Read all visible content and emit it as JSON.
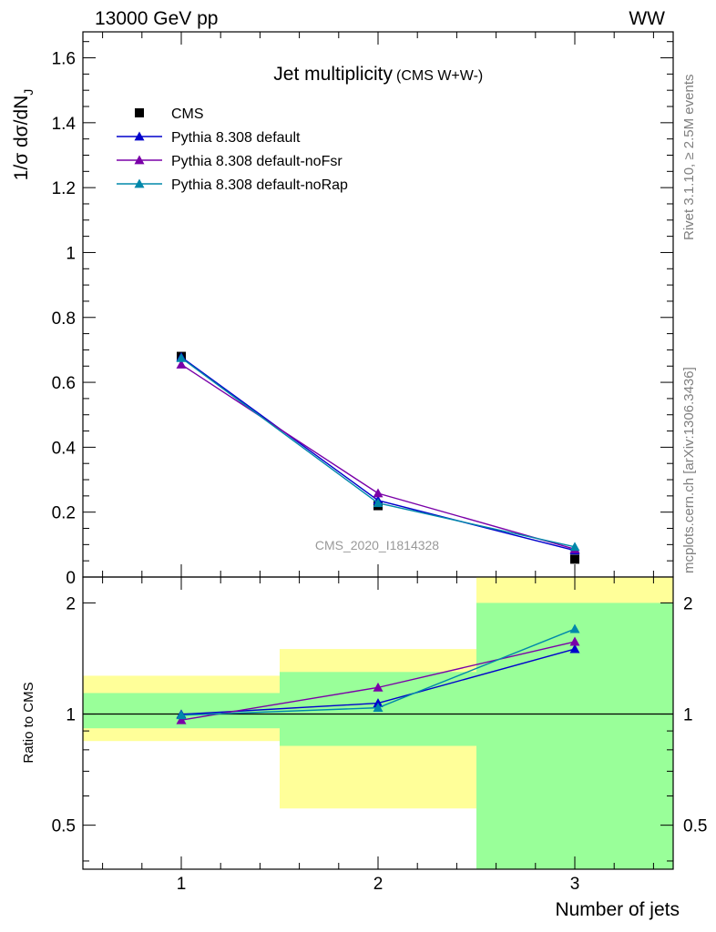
{
  "header": {
    "left": "13000 GeV pp",
    "right": "WW"
  },
  "side_labels": {
    "rivet": "Rivet 3.1.10, ≥ 2.5M events",
    "mcplots": "mcplots.cern.ch [arXiv:1306.3436]"
  },
  "watermark": "CMS_2020_I1814328",
  "chart_data": [
    {
      "type": "line",
      "title": "Jet multiplicity",
      "subtitle": "(CMS W+W-)",
      "ylabel_main": "1/σ dσ/dN",
      "ylabel_sub": "J",
      "ylim": [
        0,
        1.68
      ],
      "yticks": [
        "0",
        "0.2",
        "0.4",
        "0.6",
        "0.8",
        "1",
        "1.2",
        "1.4",
        "1.6"
      ],
      "ytick_values": [
        0,
        0.2,
        0.4,
        0.6,
        0.8,
        1.0,
        1.2,
        1.4,
        1.6
      ],
      "xlim": [
        0.5,
        3.5
      ],
      "x": [
        1,
        2,
        3
      ],
      "legend_position": "top-left",
      "series": [
        {
          "name": "CMS",
          "marker": "square",
          "color": "#000000",
          "values": [
            0.68,
            0.22,
            0.055
          ]
        },
        {
          "name": "Pythia 8.308 default",
          "marker": "triangle",
          "color": "#0000cc",
          "values": [
            0.678,
            0.236,
            0.082
          ]
        },
        {
          "name": "Pythia 8.308 default-noFsr",
          "marker": "triangle",
          "color": "#7a00a8",
          "values": [
            0.655,
            0.258,
            0.086
          ]
        },
        {
          "name": "Pythia 8.308 default-noRap",
          "marker": "triangle",
          "color": "#0088aa",
          "values": [
            0.675,
            0.228,
            0.093
          ]
        }
      ]
    },
    {
      "type": "line",
      "ylabel": "Ratio to CMS",
      "xlabel": "Number of jets",
      "yscale": "log",
      "ylim": [
        0.38,
        2.35
      ],
      "yticks": [
        "0.5",
        "1",
        "2"
      ],
      "ytick_values": [
        0.5,
        1,
        2
      ],
      "xlim": [
        0.5,
        3.5
      ],
      "xticks": [
        "1",
        "2",
        "3"
      ],
      "xtick_values": [
        1,
        2,
        3
      ],
      "reference_line": 1,
      "uncertainty_bands": [
        {
          "x_range": [
            0.5,
            1.5
          ],
          "stat_range": [
            0.915,
            1.14
          ],
          "total_range": [
            0.845,
            1.27
          ],
          "stat_color": "#99ff99",
          "total_color": "#ffff99"
        },
        {
          "x_range": [
            1.5,
            2.5
          ],
          "stat_range": [
            0.82,
            1.3
          ],
          "total_range": [
            0.555,
            1.5
          ],
          "stat_color": "#99ff99",
          "total_color": "#ffff99"
        },
        {
          "x_range": [
            2.5,
            3.5
          ],
          "stat_range": [
            0.38,
            2.0
          ],
          "total_range": [
            0.38,
            2.35
          ],
          "stat_color": "#99ff99",
          "total_color": "#ffff99"
        }
      ],
      "series": [
        {
          "name": "Pythia 8.308 default",
          "color": "#0000cc",
          "values": [
            0.998,
            1.07,
            1.5
          ]
        },
        {
          "name": "Pythia 8.308 default-noFsr",
          "color": "#7a00a8",
          "values": [
            0.963,
            1.18,
            1.57
          ]
        },
        {
          "name": "Pythia 8.308 default-noRap",
          "color": "#0088aa",
          "values": [
            0.993,
            1.04,
            1.7
          ]
        }
      ]
    }
  ]
}
